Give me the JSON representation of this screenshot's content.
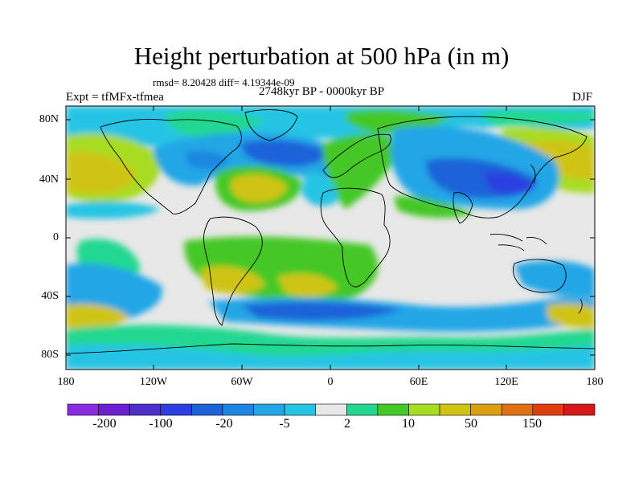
{
  "title": "Height perturbation at 500 hPa (in m)",
  "stats": "rmsd= 8.20428 diff= 4.19344e-09",
  "period": "2748kyr BP - 0000kyr BP",
  "experiment": "Expt = tfMFx-tfmea",
  "season": "DJF",
  "lat_labels": [
    "80N",
    "40N",
    "0",
    "40S",
    "80S"
  ],
  "lon_labels": [
    "180",
    "120W",
    "60W",
    "0",
    "60E",
    "120E",
    "180"
  ],
  "colorbar": {
    "colors": [
      "#8a2be2",
      "#6a1fd0",
      "#4b2fc8",
      "#2c3fe0",
      "#1e62d8",
      "#1e86e0",
      "#22a6e6",
      "#25c4e4",
      "#e8e8e8",
      "#22d890",
      "#44c828",
      "#a8dc22",
      "#cfc413",
      "#d8a010",
      "#e07012",
      "#e03c12",
      "#d81818"
    ],
    "labels": [
      "-200",
      "-100",
      "-20",
      "-5",
      "2",
      "10",
      "50",
      "150"
    ]
  },
  "colors": {
    "background": "#e8e8e8",
    "coast": "#000000"
  }
}
